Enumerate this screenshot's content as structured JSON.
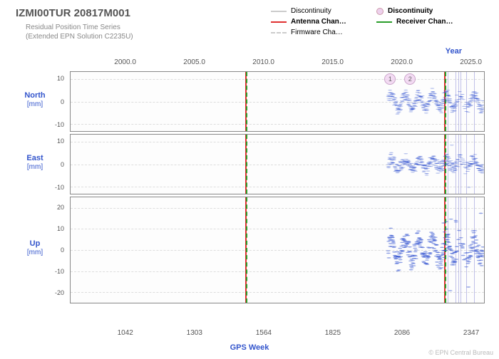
{
  "title": "IZMI00TUR 20817M001",
  "subtitle_line1": "Residual Position Time Series",
  "subtitle_line2": "(Extended EPN Solution C2235U)",
  "legend": {
    "discontinuity_line": {
      "label": "Discontinuity",
      "color": "#cccccc",
      "style": "solid"
    },
    "discontinuity_dot": {
      "label": "Discontinuity",
      "marker_fill": "rgba(230,190,230,0.7)",
      "marker_stroke": "#c9a"
    },
    "antenna_change": {
      "label": "Antenna Chan…",
      "color": "#e03030",
      "style": "solid"
    },
    "receiver_change": {
      "label": "Receiver Chan…",
      "color": "#2a9d2a",
      "style": "solid"
    },
    "firmware_change": {
      "label": "Firmware Cha…",
      "color": "#cccccc",
      "style": "dash"
    }
  },
  "top_axis": {
    "label": "Year",
    "ticks": [
      2000.0,
      2005.0,
      2010.0,
      2015.0,
      2020.0,
      2025.0
    ],
    "min": 1996.0,
    "max": 2026.0
  },
  "bottom_axis": {
    "label": "GPS Week",
    "ticks": [
      1042,
      1303,
      1564,
      1825,
      2086,
      2347
    ],
    "min": 833,
    "max": 2398
  },
  "vlines": {
    "red_green_pair_1_week": 1494,
    "red_green_pair_2_week": 2247,
    "thin_lines_weeks": [
      2260,
      2290,
      2300,
      2310,
      2330,
      2360
    ]
  },
  "disc_markers": [
    {
      "label": "1",
      "week": 2043
    },
    {
      "label": "2",
      "week": 2118
    }
  ],
  "panels": [
    {
      "key": "north",
      "label_main": "North",
      "label_unit": "[mm]",
      "ylim": [
        -13,
        13
      ],
      "yticks": [
        -10,
        0,
        10
      ],
      "data_start_week": 2035,
      "data_end_week": 2395,
      "amplitude": 3.0,
      "noise": 2.0,
      "mean_shift": 0,
      "point_color": "#3050d0",
      "point_opacity": 0.55,
      "point_radius": 1.3
    },
    {
      "key": "east",
      "label_main": "East",
      "label_unit": "[mm]",
      "ylim": [
        -13,
        13
      ],
      "yticks": [
        -10,
        0,
        10
      ],
      "data_start_week": 2035,
      "data_end_week": 2395,
      "amplitude": 2.0,
      "noise": 2.2,
      "mean_shift": 0,
      "point_color": "#3050d0",
      "point_opacity": 0.55,
      "point_radius": 1.3
    },
    {
      "key": "up",
      "label_main": "Up",
      "label_unit": "[mm]",
      "ylim": [
        -25,
        25
      ],
      "yticks": [
        -20,
        -10,
        0,
        10,
        20
      ],
      "data_start_week": 2035,
      "data_end_week": 2395,
      "amplitude": 5.0,
      "noise": 4.0,
      "mean_shift": 0,
      "point_color": "#3050d0",
      "point_opacity": 0.55,
      "point_radius": 1.3
    }
  ],
  "footer": "© EPN Central Bureau",
  "styling": {
    "background": "#ffffff",
    "panel_border": "#888888",
    "grid_color": "#dddddd",
    "title_color": "#555555",
    "axis_label_color": "#3355cc",
    "tick_font_size": 9
  }
}
